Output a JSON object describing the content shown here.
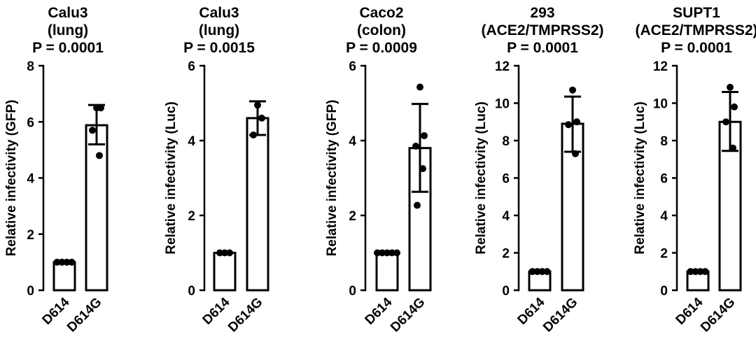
{
  "chart_data": [
    {
      "type": "bar",
      "title_lines": [
        "Calu3",
        "(lung)",
        "P = 0.0001"
      ],
      "ylabel": "Relative infectivity (GFP)",
      "xlabel": "",
      "categories": [
        "D614",
        "D614G"
      ],
      "ylim": [
        0,
        8
      ],
      "yticks": [
        0,
        2,
        4,
        6,
        8
      ],
      "values": [
        1.0,
        5.88
      ],
      "error_bars": [
        null,
        [
          5.2,
          6.6
        ]
      ],
      "points": [
        [
          1.0,
          1.0,
          1.0,
          1.0
        ],
        [
          6.5,
          6.5,
          5.7,
          4.8
        ]
      ]
    },
    {
      "type": "bar",
      "title_lines": [
        "Calu3",
        "(lung)",
        "P = 0.0015"
      ],
      "ylabel": "Relative infectivity (Luc)",
      "xlabel": "",
      "categories": [
        "D614",
        "D614G"
      ],
      "ylim": [
        0,
        6
      ],
      "yticks": [
        0,
        2,
        4,
        6
      ],
      "values": [
        1.0,
        4.6
      ],
      "error_bars": [
        null,
        [
          4.15,
          5.05
        ]
      ],
      "points": [
        [
          1.0,
          1.0,
          1.0
        ],
        [
          4.95,
          4.6,
          4.15
        ]
      ]
    },
    {
      "type": "bar",
      "title_lines": [
        "Caco2",
        "(colon)",
        "P = 0.0009"
      ],
      "ylabel": "Relative infectivity (GFP)",
      "xlabel": "",
      "categories": [
        "D614",
        "D614G"
      ],
      "ylim": [
        0,
        6
      ],
      "yticks": [
        0,
        2,
        4,
        6
      ],
      "values": [
        1.0,
        3.8
      ],
      "error_bars": [
        null,
        [
          2.63,
          4.98
        ]
      ],
      "points": [
        [
          1.0,
          1.0,
          1.0,
          1.0,
          1.0
        ],
        [
          5.43,
          4.13,
          3.85,
          3.25,
          2.27
        ]
      ]
    },
    {
      "type": "bar",
      "title_lines": [
        "293",
        "(ACE2/TMPRSS2)",
        "P = 0.0001"
      ],
      "ylabel": "Relative infectivity (Luc)",
      "xlabel": "",
      "categories": [
        "D614",
        "D614G"
      ],
      "ylim": [
        0,
        12
      ],
      "yticks": [
        0,
        2,
        4,
        6,
        8,
        10,
        12
      ],
      "values": [
        1.0,
        8.9
      ],
      "error_bars": [
        null,
        [
          7.4,
          10.35
        ]
      ],
      "points": [
        [
          1.0,
          1.0,
          1.0,
          1.0
        ],
        [
          10.7,
          9.0,
          8.85,
          7.3
        ]
      ]
    },
    {
      "type": "bar",
      "title_lines": [
        "SUPT1",
        "(ACE2/TMPRSS2)",
        "P = 0.0001"
      ],
      "ylabel": "Relative infectivity (Luc)",
      "xlabel": "",
      "categories": [
        "D614",
        "D614G"
      ],
      "ylim": [
        0,
        12
      ],
      "yticks": [
        0,
        2,
        4,
        6,
        8,
        10,
        12
      ],
      "values": [
        1.0,
        9.0
      ],
      "error_bars": [
        null,
        [
          7.45,
          10.6
        ]
      ],
      "points": [
        [
          1.0,
          1.0,
          1.0,
          1.0
        ],
        [
          10.85,
          9.8,
          9.0,
          7.6
        ]
      ]
    }
  ]
}
